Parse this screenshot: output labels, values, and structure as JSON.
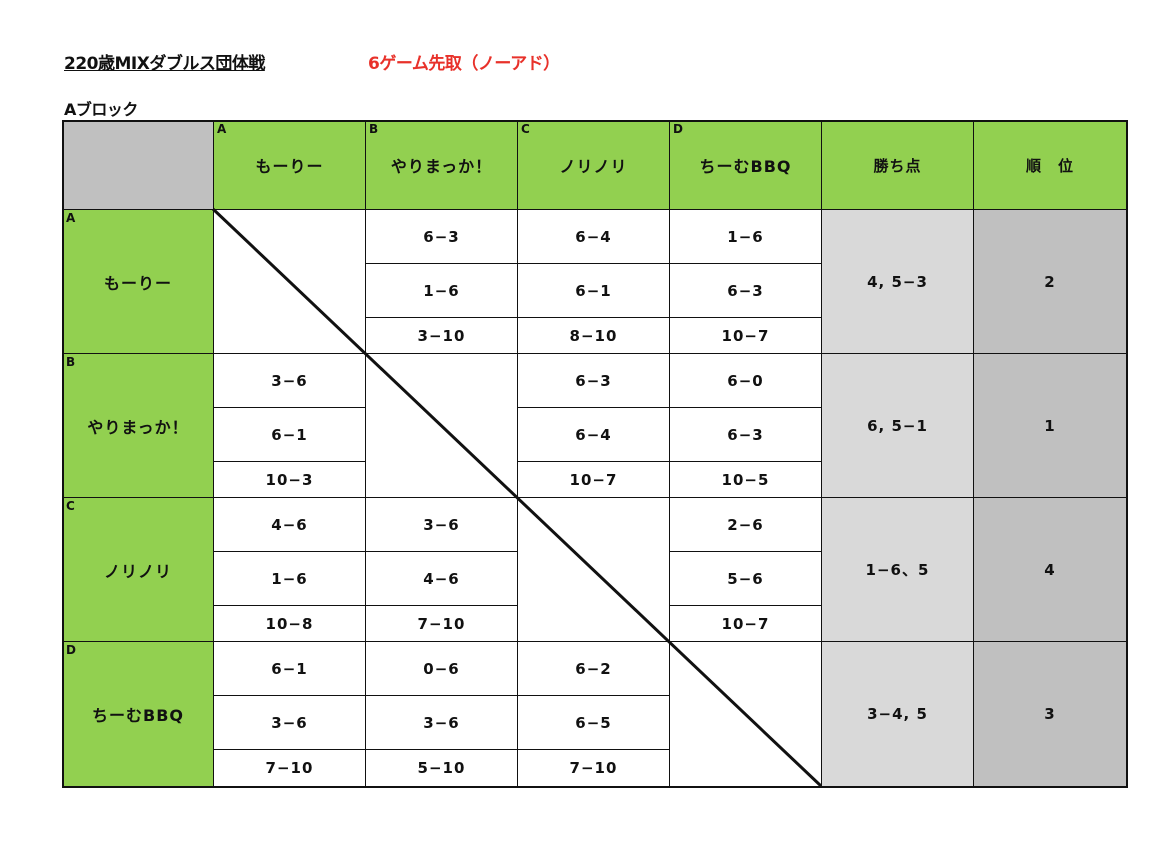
{
  "header": {
    "title": "220歳MIXダブルス団体戦",
    "rule": "6ゲーム先取（ノーアド）",
    "block": "Aブロック"
  },
  "columns": {
    "points": "勝ち点",
    "rank": "順　位"
  },
  "teams": [
    {
      "letter": "A",
      "name": "もーりー",
      "points": "4, 5−3",
      "rank": "2"
    },
    {
      "letter": "B",
      "name": "やりまっか！",
      "points": "6, 5−1",
      "rank": "1"
    },
    {
      "letter": "C",
      "name": "ノリノリ",
      "points": "1−6、5",
      "rank": "4"
    },
    {
      "letter": "D",
      "name": "ちーむBBQ",
      "points": "3−4, 5",
      "rank": "3"
    }
  ],
  "results": [
    [
      null,
      [
        "6−3",
        "1−6",
        "3−10"
      ],
      [
        "6−4",
        "6−1",
        "8−10"
      ],
      [
        "1−6",
        "6−3",
        "10−7"
      ]
    ],
    [
      [
        "3−6",
        "6−1",
        "10−3"
      ],
      null,
      [
        "6−3",
        "6−4",
        "10−7"
      ],
      [
        "6−0",
        "6−3",
        "10−5"
      ]
    ],
    [
      [
        "4−6",
        "1−6",
        "10−8"
      ],
      [
        "3−6",
        "4−6",
        "7−10"
      ],
      null,
      [
        "2−6",
        "5−6",
        "10−7"
      ]
    ],
    [
      [
        "6−1",
        "3−6",
        "7−10"
      ],
      [
        "0−6",
        "3−6",
        "5−10"
      ],
      [
        "6−2",
        "6−5",
        "7−10"
      ],
      null
    ]
  ],
  "colors": {
    "header_green": "#92d050",
    "rule_red": "#e8312a",
    "points_gray": "#d9d9d9",
    "rank_gray": "#c0c0c0"
  }
}
